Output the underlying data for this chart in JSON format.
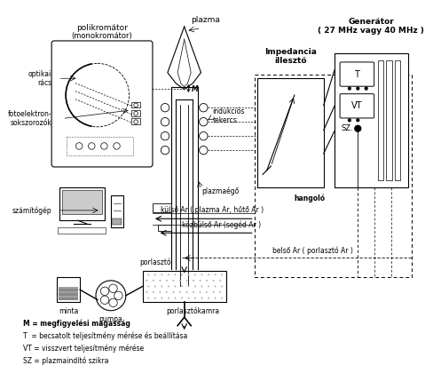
{
  "background_color": "#ffffff",
  "labels": {
    "polikromator": "polikromátor",
    "monokromator": "(monokromátor)",
    "plazma": "plazma",
    "optikai_racs": "optikai\nrács",
    "fotoelektron": "fotoelektron-\nsokszorozók",
    "szamitogep": "számítógép",
    "indukcios": "indukciós\ntekercs",
    "plazmago": "plazmaégő",
    "hangolo": "hangoló",
    "impedancia": "Impedancia\nillesztő",
    "generator": "Generátor\n( 27 MHz vagy 40 MHz )",
    "kulso_ar": "külső Ar ( plazma Ar, hűtő Ar )",
    "kozulso_ar": "közbülső Ar (segéd Ar )",
    "belso_ar": "belső Ar ( porlasztó Ar )",
    "porlaszto": "porlasztó",
    "porlasztokamra": "porlasztókamra",
    "minta": "minta",
    "pumpa": "pumpa",
    "M_label": "M",
    "legend_M": "M = megfigyelési magasság",
    "legend_T": "T  = becsatolt teljesítmény mérése és beállítása",
    "legend_VT": "VT = visszvert teljesítmény mérése",
    "legend_SZ": "SZ = plazmaindító szikra"
  }
}
